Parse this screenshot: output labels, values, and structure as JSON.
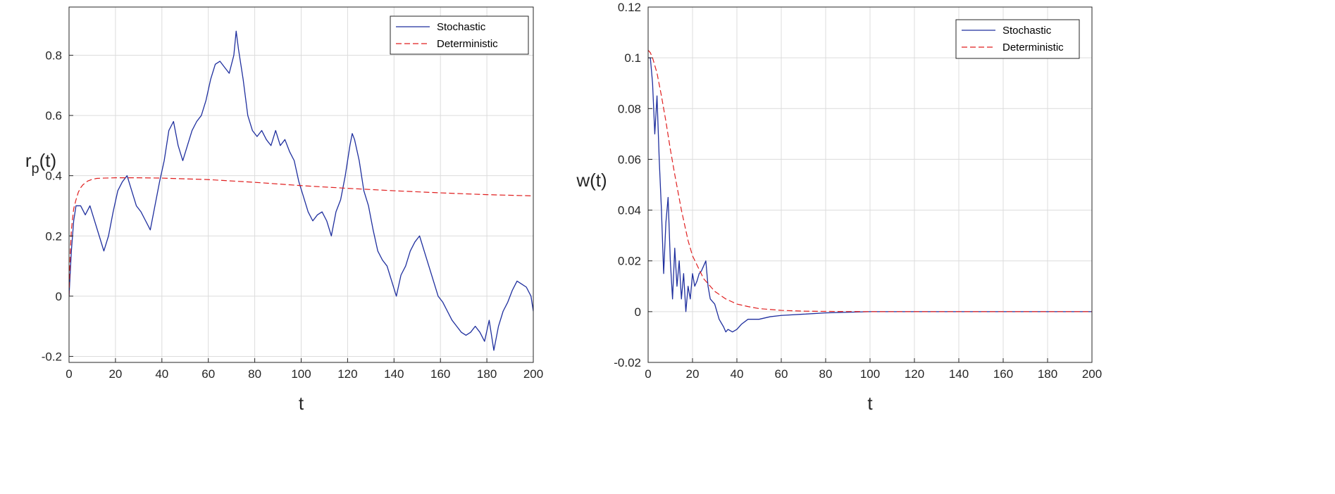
{
  "colors": {
    "stochastic": "#1f2f9e",
    "deterministic": "#e01f1f",
    "grid": "#dcdcdc",
    "axis": "#262626"
  },
  "chart_data": [
    {
      "type": "line",
      "xlabel": "t",
      "ylabel_main": "r",
      "ylabel_sub": "p",
      "ylabel_tail": "(t)",
      "xlim": [
        0,
        200
      ],
      "ylim": [
        -0.22,
        0.96
      ],
      "xticks": [
        0,
        20,
        40,
        60,
        80,
        100,
        120,
        140,
        160,
        180,
        200
      ],
      "xtick_labels": [
        "0",
        "20",
        "40",
        "60",
        "80",
        "100",
        "120",
        "140",
        "160",
        "180",
        "200"
      ],
      "yticks": [
        -0.2,
        0,
        0.2,
        0.4,
        0.6,
        0.8
      ],
      "ytick_labels": [
        "-0.2",
        "0",
        "0.2",
        "0.4",
        "0.6",
        "0.8"
      ],
      "legend": {
        "placement": "top-right",
        "entries": [
          "Stochastic",
          "Deterministic"
        ]
      },
      "series": [
        {
          "name": "Stochastic",
          "style": "solid",
          "x": [
            0,
            1,
            2,
            3,
            5,
            7,
            9,
            11,
            13,
            15,
            17,
            19,
            21,
            23,
            25,
            27,
            29,
            31,
            33,
            35,
            37,
            39,
            41,
            43,
            45,
            47,
            49,
            51,
            53,
            55,
            57,
            59,
            61,
            63,
            65,
            67,
            69,
            71,
            72,
            73,
            75,
            77,
            79,
            81,
            83,
            85,
            87,
            89,
            91,
            93,
            95,
            97,
            99,
            101,
            103,
            105,
            107,
            109,
            111,
            113,
            115,
            117,
            119,
            121,
            122,
            123,
            125,
            127,
            129,
            131,
            133,
            135,
            137,
            139,
            141,
            143,
            145,
            147,
            149,
            151,
            153,
            155,
            157,
            159,
            161,
            163,
            165,
            167,
            169,
            171,
            173,
            175,
            177,
            179,
            181,
            183,
            185,
            187,
            189,
            191,
            193,
            195,
            197,
            199,
            200
          ],
          "y": [
            0.0,
            0.15,
            0.25,
            0.3,
            0.3,
            0.27,
            0.3,
            0.25,
            0.2,
            0.15,
            0.2,
            0.28,
            0.35,
            0.38,
            0.4,
            0.35,
            0.3,
            0.28,
            0.25,
            0.22,
            0.3,
            0.38,
            0.45,
            0.55,
            0.58,
            0.5,
            0.45,
            0.5,
            0.55,
            0.58,
            0.6,
            0.65,
            0.72,
            0.77,
            0.78,
            0.76,
            0.74,
            0.8,
            0.88,
            0.82,
            0.72,
            0.6,
            0.55,
            0.53,
            0.55,
            0.52,
            0.5,
            0.55,
            0.5,
            0.52,
            0.48,
            0.45,
            0.38,
            0.33,
            0.28,
            0.25,
            0.27,
            0.28,
            0.25,
            0.2,
            0.28,
            0.32,
            0.4,
            0.5,
            0.54,
            0.52,
            0.45,
            0.35,
            0.3,
            0.22,
            0.15,
            0.12,
            0.1,
            0.05,
            0.0,
            0.07,
            0.1,
            0.15,
            0.18,
            0.2,
            0.15,
            0.1,
            0.05,
            0.0,
            -0.02,
            -0.05,
            -0.08,
            -0.1,
            -0.12,
            -0.13,
            -0.12,
            -0.1,
            -0.12,
            -0.15,
            -0.08,
            -0.18,
            -0.1,
            -0.05,
            -0.02,
            0.02,
            0.05,
            0.04,
            0.03,
            0.0,
            -0.05
          ]
        },
        {
          "name": "Deterministic",
          "style": "dashed",
          "x": [
            0,
            0.5,
            1,
            2,
            3,
            4,
            5,
            6,
            8,
            10,
            12,
            15,
            20,
            30,
            40,
            60,
            80,
            100,
            120,
            140,
            160,
            180,
            200
          ],
          "y": [
            0.0,
            0.14,
            0.22,
            0.29,
            0.32,
            0.345,
            0.36,
            0.37,
            0.382,
            0.388,
            0.391,
            0.392,
            0.393,
            0.393,
            0.392,
            0.387,
            0.378,
            0.367,
            0.358,
            0.35,
            0.343,
            0.337,
            0.333
          ]
        }
      ]
    },
    {
      "type": "line",
      "xlabel": "t",
      "ylabel_main": "w(t)",
      "ylabel_sub": "",
      "ylabel_tail": "",
      "xlim": [
        0,
        200
      ],
      "ylim": [
        -0.02,
        0.12
      ],
      "xticks": [
        0,
        20,
        40,
        60,
        80,
        100,
        120,
        140,
        160,
        180,
        200
      ],
      "xtick_labels": [
        "0",
        "20",
        "40",
        "60",
        "80",
        "100",
        "120",
        "140",
        "160",
        "180",
        "200"
      ],
      "yticks": [
        -0.02,
        0,
        0.02,
        0.04,
        0.06,
        0.08,
        0.1,
        0.12
      ],
      "ytick_labels": [
        "-0.02",
        "0",
        "0.02",
        "0.04",
        "0.06",
        "0.08",
        "0.1",
        "0.12"
      ],
      "legend": {
        "placement": "top-right",
        "entries": [
          "Stochastic",
          "Deterministic"
        ]
      },
      "series": [
        {
          "name": "Stochastic",
          "style": "solid",
          "x": [
            0,
            1,
            2,
            3,
            4,
            5,
            6,
            7,
            8,
            9,
            10,
            11,
            12,
            13,
            14,
            15,
            16,
            17,
            18,
            19,
            20,
            21,
            22,
            23,
            24,
            25,
            26,
            27,
            28,
            30,
            32,
            34,
            35,
            36,
            38,
            40,
            42,
            45,
            50,
            55,
            60,
            70,
            80,
            100,
            120,
            150,
            200
          ],
          "y": [
            0.1,
            0.1,
            0.09,
            0.07,
            0.085,
            0.06,
            0.04,
            0.015,
            0.035,
            0.045,
            0.02,
            0.005,
            0.025,
            0.01,
            0.02,
            0.005,
            0.015,
            0.0,
            0.01,
            0.005,
            0.015,
            0.01,
            0.012,
            0.015,
            0.016,
            0.018,
            0.02,
            0.01,
            0.005,
            0.003,
            -0.003,
            -0.006,
            -0.008,
            -0.007,
            -0.008,
            -0.007,
            -0.005,
            -0.003,
            -0.003,
            -0.002,
            -0.0015,
            -0.001,
            -0.0005,
            0.0,
            0.0,
            0.0,
            0.0
          ]
        },
        {
          "name": "Deterministic",
          "style": "dashed",
          "x": [
            0,
            1,
            2,
            4,
            6,
            8,
            10,
            12,
            15,
            18,
            20,
            25,
            30,
            35,
            40,
            45,
            50,
            60,
            70,
            80,
            100,
            150,
            200
          ],
          "y": [
            0.103,
            0.102,
            0.1,
            0.094,
            0.085,
            0.075,
            0.064,
            0.054,
            0.04,
            0.028,
            0.022,
            0.013,
            0.008,
            0.005,
            0.003,
            0.002,
            0.0012,
            0.0005,
            0.0002,
            0.0001,
            0.0,
            0.0,
            0.0
          ]
        }
      ]
    }
  ]
}
